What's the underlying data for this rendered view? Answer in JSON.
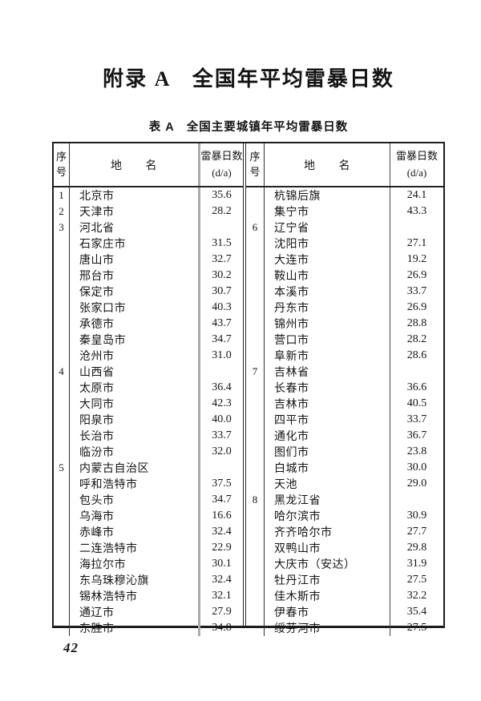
{
  "page": {
    "title": "附录 A　全国年平均雷暴日数",
    "table_caption": "表 A　全国主要城镇年平均雷暴日数",
    "page_number": "42"
  },
  "table": {
    "header": {
      "seq": "序号",
      "name": "地　　名",
      "value": "雷暴日数",
      "value_unit": "(d/a)"
    },
    "left_rows": [
      {
        "seq": "1",
        "name": "北京市",
        "value": "35.6"
      },
      {
        "seq": "2",
        "name": "天津市",
        "value": "28.2"
      },
      {
        "seq": "3",
        "name": "河北省",
        "value": ""
      },
      {
        "seq": "",
        "name": "石家庄市",
        "value": "31.5"
      },
      {
        "seq": "",
        "name": "唐山市",
        "value": "32.7"
      },
      {
        "seq": "",
        "name": "邢台市",
        "value": "30.2"
      },
      {
        "seq": "",
        "name": "保定市",
        "value": "30.7"
      },
      {
        "seq": "",
        "name": "张家口市",
        "value": "40.3"
      },
      {
        "seq": "",
        "name": "承德市",
        "value": "43.7"
      },
      {
        "seq": "",
        "name": "秦皇岛市",
        "value": "34.7"
      },
      {
        "seq": "",
        "name": "沧州市",
        "value": "31.0"
      },
      {
        "seq": "4",
        "name": "山西省",
        "value": ""
      },
      {
        "seq": "",
        "name": "太原市",
        "value": "36.4"
      },
      {
        "seq": "",
        "name": "大同市",
        "value": "42.3"
      },
      {
        "seq": "",
        "name": "阳泉市",
        "value": "40.0"
      },
      {
        "seq": "",
        "name": "长治市",
        "value": "33.7"
      },
      {
        "seq": "",
        "name": "临汾市",
        "value": "32.0"
      },
      {
        "seq": "5",
        "name": "内蒙古自治区",
        "value": ""
      },
      {
        "seq": "",
        "name": "呼和浩特市",
        "value": "37.5"
      },
      {
        "seq": "",
        "name": "包头市",
        "value": "34.7"
      },
      {
        "seq": "",
        "name": "乌海市",
        "value": "16.6"
      },
      {
        "seq": "",
        "name": "赤峰市",
        "value": "32.4"
      },
      {
        "seq": "",
        "name": "二连浩特市",
        "value": "22.9"
      },
      {
        "seq": "",
        "name": "海拉尔市",
        "value": "30.1"
      },
      {
        "seq": "",
        "name": "东乌珠穆沁旗",
        "value": "32.4"
      },
      {
        "seq": "",
        "name": "锡林浩特市",
        "value": "32.1"
      },
      {
        "seq": "",
        "name": "通辽市",
        "value": "27.9"
      },
      {
        "seq": "",
        "name": "东胜市",
        "value": "34.8"
      }
    ],
    "right_rows": [
      {
        "seq": "",
        "name": "杭锦后旗",
        "value": "24.1"
      },
      {
        "seq": "",
        "name": "集宁市",
        "value": "43.3"
      },
      {
        "seq": "6",
        "name": "辽宁省",
        "value": ""
      },
      {
        "seq": "",
        "name": "沈阳市",
        "value": "27.1"
      },
      {
        "seq": "",
        "name": "大连市",
        "value": "19.2"
      },
      {
        "seq": "",
        "name": "鞍山市",
        "value": "26.9"
      },
      {
        "seq": "",
        "name": "本溪市",
        "value": "33.7"
      },
      {
        "seq": "",
        "name": "丹东市",
        "value": "26.9"
      },
      {
        "seq": "",
        "name": "锦州市",
        "value": "28.8"
      },
      {
        "seq": "",
        "name": "营口市",
        "value": "28.2"
      },
      {
        "seq": "",
        "name": "阜新市",
        "value": "28.6"
      },
      {
        "seq": "7",
        "name": "吉林省",
        "value": ""
      },
      {
        "seq": "",
        "name": "长春市",
        "value": "36.6"
      },
      {
        "seq": "",
        "name": "吉林市",
        "value": "40.5"
      },
      {
        "seq": "",
        "name": "四平市",
        "value": "33.7"
      },
      {
        "seq": "",
        "name": "通化市",
        "value": "36.7"
      },
      {
        "seq": "",
        "name": "图们市",
        "value": "23.8"
      },
      {
        "seq": "",
        "name": "白城市",
        "value": "30.0"
      },
      {
        "seq": "",
        "name": "天池",
        "value": "29.0"
      },
      {
        "seq": "8",
        "name": "黑龙江省",
        "value": ""
      },
      {
        "seq": "",
        "name": "哈尔滨市",
        "value": "30.9"
      },
      {
        "seq": "",
        "name": "齐齐哈尔市",
        "value": "27.7"
      },
      {
        "seq": "",
        "name": "双鸭山市",
        "value": "29.8"
      },
      {
        "seq": "",
        "name": "大庆市（安达）",
        "value": "31.9"
      },
      {
        "seq": "",
        "name": "牡丹江市",
        "value": "27.5"
      },
      {
        "seq": "",
        "name": "佳木斯市",
        "value": "32.2"
      },
      {
        "seq": "",
        "name": "伊春市",
        "value": "35.4"
      },
      {
        "seq": "",
        "name": "绥芬河市",
        "value": "27.5"
      }
    ]
  }
}
